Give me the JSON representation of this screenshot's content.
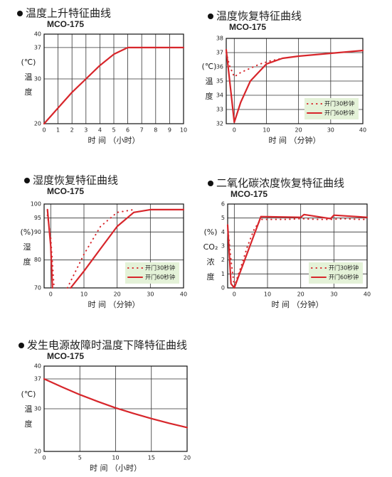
{
  "chart_data": [
    {
      "type": "line",
      "title": "温度上升特征曲线",
      "subtitle": "MCO-175",
      "ylabel": [
        "(℃)",
        "温",
        "度"
      ],
      "xlabel": "时 间 （小时）",
      "xlim": [
        0,
        10
      ],
      "xticks": [
        0,
        1,
        2,
        3,
        4,
        5,
        6,
        7,
        8,
        9,
        10
      ],
      "ylim": [
        20,
        40
      ],
      "yticks": [
        20,
        30,
        37,
        40
      ],
      "grid": true,
      "series": [
        {
          "style": "solid",
          "color": "#d7262b",
          "x": [
            0,
            1,
            2,
            3,
            4,
            5,
            6,
            7,
            8,
            9,
            10
          ],
          "values": [
            20,
            23.5,
            27,
            30,
            33,
            35.5,
            37,
            37,
            37,
            37,
            37
          ]
        }
      ]
    },
    {
      "type": "line",
      "title": "温度恢复特征曲线",
      "subtitle": "MCO-175",
      "ylabel": [
        "(℃)",
        "温",
        "度"
      ],
      "xlabel": "时 间 （分钟）",
      "xlim": [
        -2.5,
        40
      ],
      "xticks": [
        0,
        10,
        20,
        30,
        40
      ],
      "ylim": [
        32,
        38
      ],
      "yticks": [
        32,
        33,
        34,
        35,
        36,
        37,
        38
      ],
      "grid": true,
      "legend": "lower right",
      "series": [
        {
          "name": "开门30秒钟",
          "style": "dotted",
          "color": "#d7262b",
          "x": [
            -2.5,
            -1.5,
            0,
            2,
            5,
            8,
            11,
            15
          ],
          "values": [
            37,
            36.1,
            35.3,
            35.6,
            35.9,
            36.2,
            36.4,
            36.6
          ]
        },
        {
          "name": "开门60秒钟",
          "style": "solid",
          "color": "#d7262b",
          "x": [
            -2.5,
            0,
            2,
            5,
            10,
            15,
            20,
            30,
            40
          ],
          "values": [
            37.2,
            32.1,
            33.5,
            35,
            36.2,
            36.6,
            36.75,
            36.95,
            37.15
          ]
        }
      ]
    },
    {
      "type": "line",
      "title": "湿度恢复特征曲线",
      "subtitle": "MCO-175",
      "ylabel": [
        "(%)",
        "湿",
        "度"
      ],
      "xlabel": "时 间 （分钟）",
      "xlim": [
        -2,
        40
      ],
      "xticks": [
        0,
        10,
        20,
        30,
        40
      ],
      "ylim": [
        70,
        100
      ],
      "yticks": [
        70,
        80,
        90,
        95,
        100
      ],
      "grid": true,
      "legend": "lower right",
      "series": [
        {
          "name": "开门30秒钟",
          "style": "dotted",
          "color": "#d7262b",
          "x": [
            -1,
            0,
            1,
            3,
            5,
            10,
            15,
            20,
            25
          ],
          "values": [
            96,
            88,
            70,
            null,
            70,
            82,
            92,
            97,
            98
          ]
        },
        {
          "name": "开门60秒钟",
          "style": "solid",
          "color": "#d7262b",
          "x": [
            -1,
            0,
            0.5,
            3,
            6,
            10,
            15,
            20,
            25,
            30,
            40
          ],
          "values": [
            98,
            85,
            70,
            null,
            70,
            76,
            84,
            92,
            97,
            98,
            98
          ]
        }
      ]
    },
    {
      "type": "line",
      "title": "二氧化碳浓度恢复特征曲线",
      "subtitle": "MCO-175",
      "ylabel": [
        "(%)",
        "CO₂",
        "浓",
        "度"
      ],
      "xlabel": "时 间 （分钟）",
      "xlim": [
        -2,
        40
      ],
      "xticks": [
        0,
        10,
        20,
        30,
        40
      ],
      "ylim": [
        0,
        6
      ],
      "yticks": [
        0,
        1,
        2,
        3,
        4,
        5,
        6
      ],
      "grid": true,
      "legend": "lower right",
      "series": [
        {
          "name": "开门30秒钟",
          "style": "dotted",
          "color": "#d7262b",
          "x": [
            -2,
            -1,
            0,
            2,
            4,
            6,
            8,
            12,
            16,
            20,
            25,
            29,
            33,
            37,
            40
          ],
          "values": [
            4.4,
            2,
            0.1,
            1.5,
            3,
            4.2,
            4.9,
            4.9,
            4.9,
            4.95,
            4.9,
            4.9,
            4.95,
            4.9,
            4.9
          ]
        },
        {
          "name": "开门60秒钟",
          "style": "solid",
          "color": "#d7262b",
          "x": [
            -2,
            -1,
            0,
            8,
            20,
            21,
            29,
            30,
            40
          ],
          "values": [
            4.5,
            0.3,
            0,
            5.1,
            5.05,
            5.25,
            4.95,
            5.2,
            5.05
          ]
        }
      ]
    },
    {
      "type": "line",
      "title": "发生电源故障时温度下降特征曲线",
      "subtitle": "MCO-175",
      "ylabel": [
        "(℃)",
        "温",
        "度"
      ],
      "xlabel": "时 间 （小时）",
      "xlim": [
        0,
        20
      ],
      "xticks": [
        0,
        5,
        10,
        15,
        20
      ],
      "ylim": [
        20,
        40
      ],
      "yticks": [
        20,
        30,
        37,
        40
      ],
      "grid": true,
      "series": [
        {
          "style": "solid",
          "color": "#d7262b",
          "x": [
            0,
            2.5,
            5,
            7.5,
            10,
            12.5,
            15,
            17.5,
            20
          ],
          "values": [
            37,
            35.1,
            33.3,
            31.7,
            30.2,
            28.9,
            27.7,
            26.6,
            25.6
          ]
        }
      ]
    }
  ]
}
